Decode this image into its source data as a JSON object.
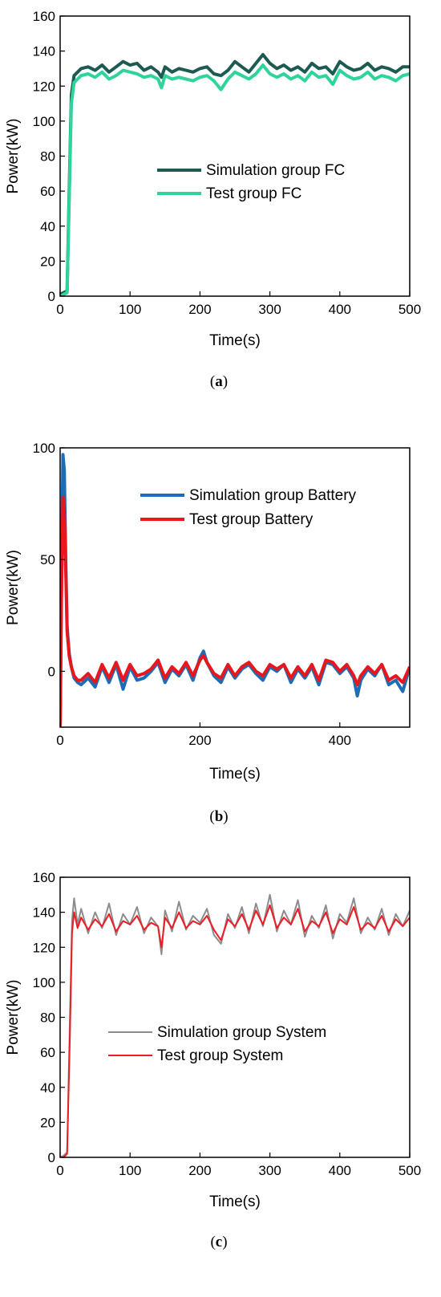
{
  "chart_data": [
    {
      "type": "line",
      "caption_letter": "a",
      "xlabel": "Time(s)",
      "ylabel": "Power(kW)",
      "xlim": [
        0,
        500
      ],
      "ylim": [
        0,
        160
      ],
      "xticks": [
        0,
        100,
        200,
        300,
        400,
        500
      ],
      "yticks": [
        0,
        20,
        40,
        60,
        80,
        100,
        120,
        140,
        160
      ],
      "grid": false,
      "legend_position": "center-right",
      "series": [
        {
          "name": "Simulation group FC",
          "color": "#1d5b52",
          "x": [
            0,
            5,
            10,
            13,
            16,
            20,
            25,
            30,
            40,
            50,
            60,
            70,
            80,
            90,
            100,
            110,
            120,
            130,
            140,
            145,
            150,
            160,
            170,
            180,
            190,
            200,
            210,
            220,
            230,
            240,
            250,
            260,
            270,
            280,
            290,
            300,
            310,
            320,
            330,
            340,
            350,
            360,
            370,
            380,
            390,
            400,
            410,
            420,
            430,
            440,
            450,
            460,
            470,
            480,
            490,
            500
          ],
          "values": [
            1,
            2,
            3,
            60,
            115,
            126,
            128,
            130,
            131,
            129,
            132,
            128,
            131,
            134,
            132,
            133,
            129,
            131,
            128,
            125,
            131,
            128,
            130,
            129,
            128,
            130,
            131,
            127,
            126,
            129,
            134,
            131,
            128,
            133,
            138,
            133,
            130,
            132,
            129,
            131,
            128,
            133,
            130,
            131,
            127,
            134,
            131,
            129,
            130,
            133,
            129,
            131,
            130,
            128,
            131,
            131
          ]
        },
        {
          "name": "Test group FC",
          "color": "#2fd49b",
          "x": [
            0,
            5,
            10,
            13,
            16,
            20,
            25,
            30,
            40,
            50,
            60,
            70,
            80,
            90,
            100,
            110,
            120,
            130,
            140,
            145,
            150,
            160,
            170,
            180,
            190,
            200,
            210,
            220,
            230,
            240,
            250,
            260,
            270,
            280,
            290,
            300,
            310,
            320,
            330,
            340,
            350,
            360,
            370,
            380,
            390,
            400,
            410,
            420,
            430,
            440,
            450,
            460,
            470,
            480,
            490,
            500
          ],
          "values": [
            0,
            1,
            2,
            55,
            110,
            122,
            124,
            126,
            127,
            125,
            128,
            124,
            126,
            129,
            128,
            127,
            125,
            126,
            124,
            119,
            126,
            124,
            125,
            124,
            123,
            125,
            126,
            123,
            118,
            124,
            128,
            126,
            124,
            127,
            132,
            127,
            125,
            127,
            124,
            126,
            123,
            128,
            125,
            126,
            121,
            129,
            126,
            124,
            125,
            128,
            124,
            126,
            125,
            123,
            126,
            127
          ]
        }
      ]
    },
    {
      "type": "line",
      "caption_letter": "b",
      "xlabel": "Time(s)",
      "ylabel": "Power(kW)",
      "xlim": [
        0,
        500
      ],
      "ylim": [
        -25,
        100
      ],
      "xticks": [
        0,
        200,
        400
      ],
      "yticks": [
        0,
        50,
        100
      ],
      "grid": false,
      "legend_position": "top-right",
      "series": [
        {
          "name": "Simulation group Battery",
          "color": "#1c6db5",
          "x": [
            0,
            2,
            4,
            6,
            8,
            10,
            13,
            16,
            20,
            25,
            30,
            40,
            50,
            60,
            70,
            80,
            90,
            100,
            110,
            120,
            130,
            140,
            150,
            160,
            170,
            180,
            190,
            200,
            205,
            210,
            220,
            230,
            240,
            250,
            260,
            270,
            280,
            290,
            300,
            310,
            320,
            330,
            340,
            350,
            360,
            370,
            380,
            390,
            400,
            410,
            420,
            425,
            430,
            440,
            450,
            460,
            470,
            480,
            490,
            500
          ],
          "values": [
            -25,
            40,
            97,
            90,
            50,
            20,
            8,
            2,
            -3,
            -5,
            -6,
            -3,
            -7,
            2,
            -5,
            3,
            -8,
            2,
            -4,
            -3,
            0,
            4,
            -5,
            1,
            -2,
            3,
            -4,
            6,
            9,
            4,
            -2,
            -5,
            2,
            -3,
            1,
            3,
            -1,
            -4,
            2,
            0,
            3,
            -5,
            1,
            -3,
            2,
            -6,
            4,
            3,
            -1,
            2,
            -3,
            -11,
            -4,
            1,
            -2,
            3,
            -6,
            -4,
            -9,
            2
          ]
        },
        {
          "name": "Test group Battery",
          "color": "#e8161d",
          "x": [
            0,
            2,
            4,
            6,
            8,
            10,
            13,
            16,
            20,
            25,
            30,
            40,
            50,
            60,
            70,
            80,
            90,
            100,
            110,
            120,
            130,
            140,
            150,
            160,
            170,
            180,
            190,
            200,
            205,
            210,
            220,
            230,
            240,
            250,
            260,
            270,
            280,
            290,
            300,
            310,
            320,
            330,
            340,
            350,
            360,
            370,
            380,
            390,
            400,
            410,
            420,
            425,
            430,
            440,
            450,
            460,
            470,
            480,
            490,
            500
          ],
          "values": [
            -25,
            35,
            78,
            72,
            45,
            18,
            7,
            2,
            -2,
            -4,
            -4,
            -1,
            -5,
            3,
            -3,
            4,
            -4,
            3,
            -2,
            -1,
            1,
            5,
            -3,
            2,
            -1,
            4,
            -2,
            5,
            7,
            4,
            -1,
            -3,
            3,
            -2,
            2,
            4,
            0,
            -2,
            3,
            1,
            3,
            -3,
            2,
            -2,
            3,
            -4,
            5,
            4,
            0,
            3,
            -2,
            -6,
            -2,
            2,
            -1,
            3,
            -4,
            -2,
            -5,
            2
          ]
        }
      ]
    },
    {
      "type": "line",
      "caption_letter": "c",
      "xlabel": "Time(s)",
      "ylabel": "Power(kW)",
      "xlim": [
        0,
        500
      ],
      "ylim": [
        0,
        160
      ],
      "xticks": [
        0,
        100,
        200,
        300,
        400,
        500
      ],
      "yticks": [
        0,
        20,
        40,
        60,
        80,
        100,
        120,
        140,
        160
      ],
      "grid": false,
      "legend_position": "center",
      "series": [
        {
          "name": "Simulation group System",
          "color": "#8c8c8c",
          "x": [
            0,
            5,
            10,
            14,
            17,
            20,
            25,
            30,
            40,
            50,
            60,
            70,
            80,
            90,
            100,
            110,
            120,
            130,
            140,
            145,
            150,
            160,
            170,
            180,
            190,
            200,
            210,
            220,
            230,
            240,
            250,
            260,
            270,
            280,
            290,
            300,
            310,
            320,
            330,
            340,
            350,
            360,
            370,
            380,
            390,
            400,
            410,
            420,
            430,
            440,
            450,
            460,
            470,
            480,
            490,
            500
          ],
          "values": [
            0,
            1,
            3,
            80,
            135,
            148,
            133,
            142,
            128,
            140,
            131,
            145,
            127,
            139,
            133,
            143,
            128,
            137,
            132,
            116,
            141,
            129,
            146,
            130,
            138,
            134,
            142,
            127,
            122,
            139,
            131,
            143,
            128,
            145,
            132,
            150,
            129,
            141,
            133,
            147,
            126,
            138,
            131,
            144,
            125,
            139,
            134,
            148,
            128,
            137,
            130,
            142,
            127,
            139,
            132,
            141
          ]
        },
        {
          "name": "Test group System",
          "color": "#ee1c24",
          "x": [
            0,
            5,
            10,
            14,
            17,
            20,
            25,
            30,
            40,
            50,
            60,
            70,
            80,
            90,
            100,
            110,
            120,
            130,
            140,
            145,
            150,
            160,
            170,
            180,
            190,
            200,
            210,
            220,
            230,
            240,
            250,
            260,
            270,
            280,
            290,
            300,
            310,
            320,
            330,
            340,
            350,
            360,
            370,
            380,
            390,
            400,
            410,
            420,
            430,
            440,
            450,
            460,
            470,
            480,
            490,
            500
          ],
          "values": [
            0,
            0,
            2,
            70,
            128,
            140,
            131,
            137,
            130,
            136,
            132,
            139,
            129,
            135,
            133,
            138,
            130,
            134,
            132,
            120,
            137,
            131,
            140,
            131,
            135,
            133,
            138,
            130,
            124,
            136,
            132,
            139,
            130,
            141,
            133,
            144,
            131,
            137,
            133,
            142,
            129,
            135,
            132,
            140,
            128,
            136,
            133,
            143,
            130,
            134,
            131,
            138,
            129,
            136,
            132,
            137
          ]
        }
      ]
    }
  ]
}
